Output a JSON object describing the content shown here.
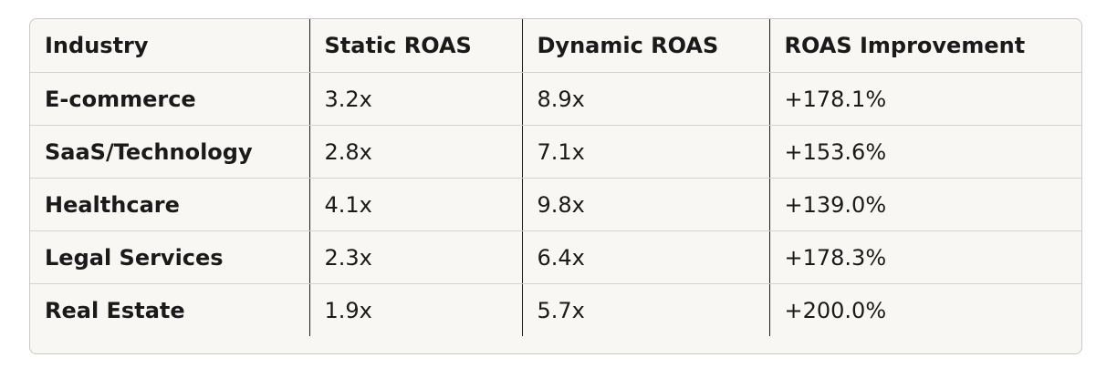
{
  "table": {
    "headers": [
      "Industry",
      "Static ROAS",
      "Dynamic ROAS",
      "ROAS Improvement"
    ],
    "rows": [
      [
        "E-commerce",
        "3.2x",
        "8.9x",
        "+178.1%"
      ],
      [
        "SaaS/Technology",
        "2.8x",
        "7.1x",
        "+153.6%"
      ],
      [
        "Healthcare",
        "4.1x",
        "9.8x",
        "+139.0%"
      ],
      [
        "Legal Services",
        "2.3x",
        "6.4x",
        "+178.3%"
      ],
      [
        "Real Estate",
        "1.9x",
        "5.7x",
        "+200.0%"
      ]
    ]
  }
}
